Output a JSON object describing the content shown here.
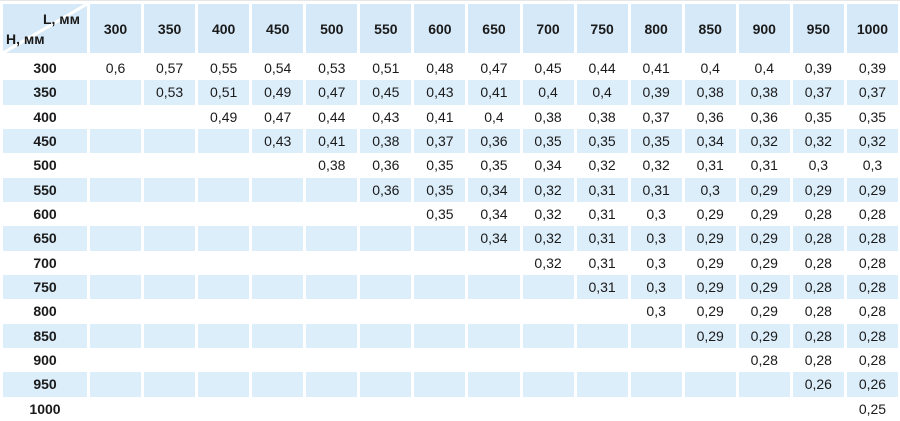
{
  "colors": {
    "header_bg": "#d6e9f8",
    "stripe_bg": "#ddeefb",
    "divider": "#ffffff",
    "text": "#1a1a1a"
  },
  "chart_data": {
    "type": "table",
    "title": "",
    "corner": {
      "top_label": "L, мм",
      "bottom_label": "H, мм"
    },
    "columns": [
      "300",
      "350",
      "400",
      "450",
      "500",
      "550",
      "600",
      "650",
      "700",
      "750",
      "800",
      "850",
      "900",
      "950",
      "1000"
    ],
    "rows": [
      {
        "h": "300",
        "values": [
          "0,6",
          "0,57",
          "0,55",
          "0,54",
          "0,53",
          "0,51",
          "0,48",
          "0,47",
          "0,45",
          "0,44",
          "0,41",
          "0,4",
          "0,4",
          "0,39",
          "0,39"
        ]
      },
      {
        "h": "350",
        "values": [
          "",
          "0,53",
          "0,51",
          "0,49",
          "0,47",
          "0,45",
          "0,43",
          "0,41",
          "0,4",
          "0,4",
          "0,39",
          "0,38",
          "0,38",
          "0,37",
          "0,37"
        ]
      },
      {
        "h": "400",
        "values": [
          "",
          "",
          "0,49",
          "0,47",
          "0,44",
          "0,43",
          "0,41",
          "0,4",
          "0,38",
          "0,38",
          "0,37",
          "0,36",
          "0,36",
          "0,35",
          "0,35"
        ]
      },
      {
        "h": "450",
        "values": [
          "",
          "",
          "",
          "0,43",
          "0,41",
          "0,38",
          "0,37",
          "0,36",
          "0,35",
          "0,35",
          "0,35",
          "0,34",
          "0,32",
          "0,32",
          "0,32"
        ]
      },
      {
        "h": "500",
        "values": [
          "",
          "",
          "",
          "",
          "0,38",
          "0,36",
          "0,35",
          "0,35",
          "0,34",
          "0,32",
          "0,32",
          "0,31",
          "0,31",
          "0,3",
          "0,3"
        ]
      },
      {
        "h": "550",
        "values": [
          "",
          "",
          "",
          "",
          "",
          "0,36",
          "0,35",
          "0,34",
          "0,32",
          "0,31",
          "0,31",
          "0,3",
          "0,29",
          "0,29",
          "0,29"
        ]
      },
      {
        "h": "600",
        "values": [
          "",
          "",
          "",
          "",
          "",
          "",
          "0,35",
          "0,34",
          "0,32",
          "0,31",
          "0,3",
          "0,29",
          "0,29",
          "0,28",
          "0,28"
        ]
      },
      {
        "h": "650",
        "values": [
          "",
          "",
          "",
          "",
          "",
          "",
          "",
          "0,34",
          "0,32",
          "0,31",
          "0,3",
          "0,29",
          "0,29",
          "0,28",
          "0,28"
        ]
      },
      {
        "h": "700",
        "values": [
          "",
          "",
          "",
          "",
          "",
          "",
          "",
          "",
          "0,32",
          "0,31",
          "0,3",
          "0,29",
          "0,29",
          "0,28",
          "0,28"
        ]
      },
      {
        "h": "750",
        "values": [
          "",
          "",
          "",
          "",
          "",
          "",
          "",
          "",
          "",
          "0,31",
          "0,3",
          "0,29",
          "0,29",
          "0,28",
          "0,28"
        ]
      },
      {
        "h": "800",
        "values": [
          "",
          "",
          "",
          "",
          "",
          "",
          "",
          "",
          "",
          "",
          "0,3",
          "0,29",
          "0,29",
          "0,28",
          "0,28"
        ]
      },
      {
        "h": "850",
        "values": [
          "",
          "",
          "",
          "",
          "",
          "",
          "",
          "",
          "",
          "",
          "",
          "0,29",
          "0,29",
          "0,28",
          "0,28"
        ]
      },
      {
        "h": "900",
        "values": [
          "",
          "",
          "",
          "",
          "",
          "",
          "",
          "",
          "",
          "",
          "",
          "",
          "0,28",
          "0,28",
          "0,28"
        ]
      },
      {
        "h": "950",
        "values": [
          "",
          "",
          "",
          "",
          "",
          "",
          "",
          "",
          "",
          "",
          "",
          "",
          "",
          "0,26",
          "0,26"
        ]
      },
      {
        "h": "1000",
        "values": [
          "",
          "",
          "",
          "",
          "",
          "",
          "",
          "",
          "",
          "",
          "",
          "",
          "",
          "",
          "0,25"
        ]
      }
    ]
  }
}
